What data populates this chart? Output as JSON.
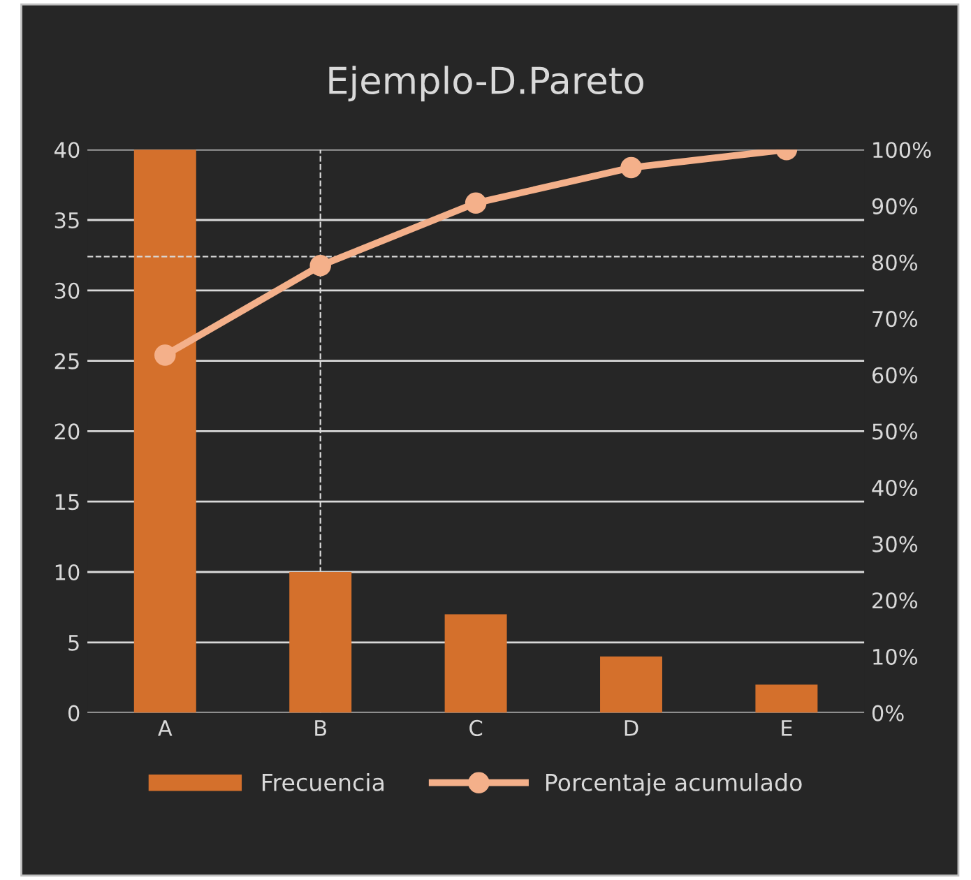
{
  "chart_data": {
    "type": "bar",
    "title": "Ejemplo-D.Pareto",
    "categories": [
      "A",
      "B",
      "C",
      "D",
      "E"
    ],
    "series": [
      {
        "name": "Frecuencia",
        "color": "#d4702c",
        "values": [
          40,
          10,
          7,
          4,
          2
        ]
      },
      {
        "name": "Porcentaje acumulado",
        "type": "line",
        "axis": "y2",
        "color": "#f4b08a",
        "marker": "circle",
        "values": [
          63.5,
          79.4,
          90.5,
          96.8,
          100
        ]
      }
    ],
    "ylim": [
      0,
      40
    ],
    "yticks": [
      0,
      5,
      10,
      15,
      20,
      25,
      30,
      35,
      40
    ],
    "y2lim": [
      0,
      100
    ],
    "y2ticks": [
      {
        "value": 0,
        "label": "0%"
      },
      {
        "value": 10,
        "label": "10%"
      },
      {
        "value": 20,
        "label": "20%"
      },
      {
        "value": 30,
        "label": "30%"
      },
      {
        "value": 40,
        "label": "40%"
      },
      {
        "value": 50,
        "label": "50%"
      },
      {
        "value": 60,
        "label": "60%"
      },
      {
        "value": 70,
        "label": "70%"
      },
      {
        "value": 80,
        "label": "80%"
      },
      {
        "value": 90,
        "label": "90%"
      },
      {
        "value": 100,
        "label": "100%"
      }
    ],
    "ref_lines": [
      {
        "axis": "x",
        "value": "B",
        "color": "#d9d9d9",
        "line_style": "dashed"
      },
      {
        "axis": "y2",
        "value": 81,
        "color": "#d9d9d9",
        "line_style": "dashed"
      }
    ],
    "grid": "y",
    "legend": "bottom"
  }
}
